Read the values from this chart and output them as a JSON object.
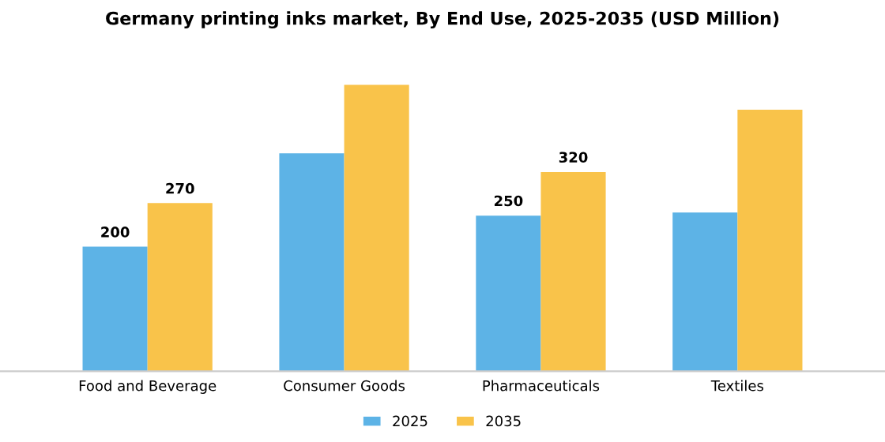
{
  "chart_data": {
    "type": "bar",
    "title": "Germany printing inks market, By End Use, 2025-2035 (USD Million)",
    "categories": [
      "Food and Beverage",
      "Consumer Goods",
      "Pharmaceuticals",
      "Textiles"
    ],
    "series": [
      {
        "name": "2025",
        "color": "#5db3e6",
        "values": [
          200,
          350,
          250,
          255
        ],
        "value_labels": [
          "200",
          null,
          "250",
          null
        ]
      },
      {
        "name": "2035",
        "color": "#f9c34a",
        "values": [
          270,
          460,
          320,
          420
        ],
        "value_labels": [
          "270",
          null,
          "320",
          null
        ]
      }
    ],
    "legend": "bottom",
    "grid": false
  }
}
